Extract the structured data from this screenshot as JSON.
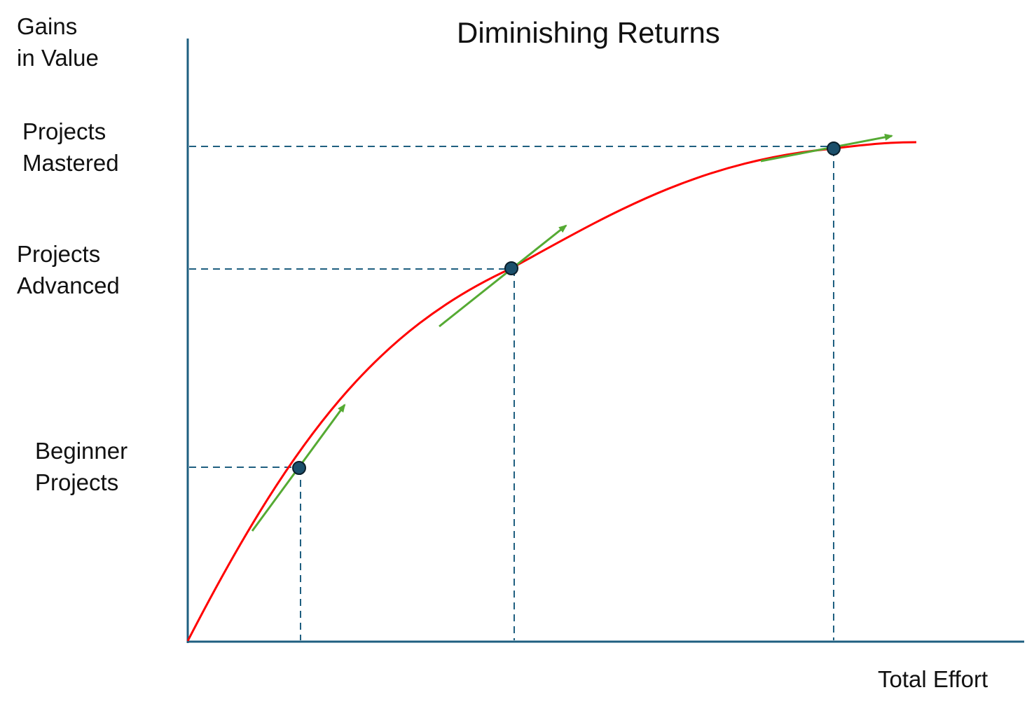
{
  "title": "Diminishing Returns",
  "y_axis_label": [
    "Gains",
    "in Value"
  ],
  "x_axis_label": "Total Effort",
  "levels": [
    {
      "label": [
        "Beginner",
        "Projects"
      ]
    },
    {
      "label": [
        "Projects",
        "Advanced"
      ]
    },
    {
      "label": [
        "Projects",
        "Mastered"
      ]
    }
  ],
  "colors": {
    "axis": "#1f5f80",
    "guide": "#1f5f80",
    "curve": "#ff0000",
    "tangent": "#55aa33",
    "point": "#1b4f6b"
  }
}
